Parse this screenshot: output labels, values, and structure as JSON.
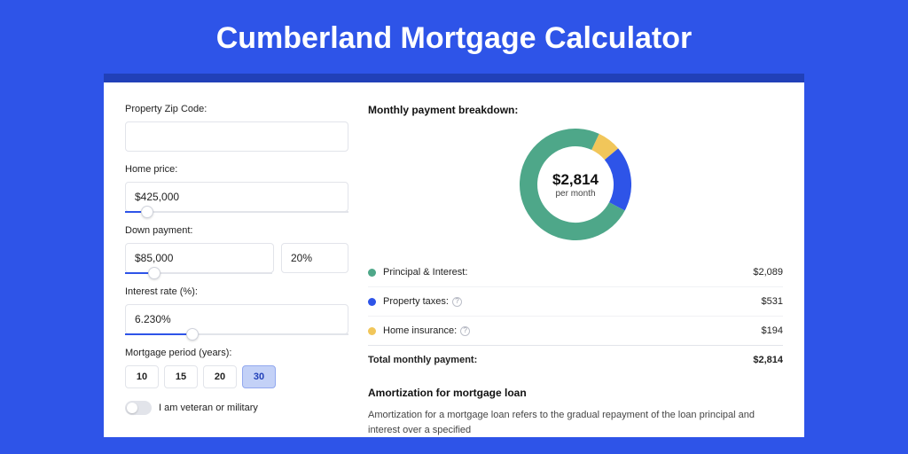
{
  "title": "Cumberland Mortgage Calculator",
  "colors": {
    "page_bg": "#2e54e8",
    "banner_bg": "#2140b8",
    "card_bg": "#ffffff",
    "primary": "#2e54e8",
    "border": "#e2e4ea"
  },
  "form": {
    "zip_label": "Property Zip Code:",
    "zip_value": "",
    "price_label": "Home price:",
    "price_value": "$425,000",
    "price_slider_pct": 10,
    "dp_label": "Down payment:",
    "dp_value": "$85,000",
    "dp_pct_value": "20%",
    "dp_slider_pct": 20,
    "rate_label": "Interest rate (%):",
    "rate_value": "6.230%",
    "rate_slider_pct": 30,
    "period_label": "Mortgage period (years):",
    "periods": [
      "10",
      "15",
      "20",
      "30"
    ],
    "period_active_index": 3,
    "veteran_label": "I am veteran or military"
  },
  "breakdown": {
    "heading": "Monthly payment breakdown:",
    "donut": {
      "amount": "$2,814",
      "sub": "per month",
      "slices": [
        {
          "label": "Principal & Interest",
          "value_pct": 74.2,
          "color": "#4ea789"
        },
        {
          "label": "Property taxes",
          "value_pct": 18.9,
          "color": "#2e54e8"
        },
        {
          "label": "Home insurance",
          "value_pct": 6.9,
          "color": "#f1c65a"
        }
      ],
      "ring_width": 20
    },
    "legend": [
      {
        "dot_color": "#4ea789",
        "label": "Principal & Interest:",
        "info": false,
        "value": "$2,089"
      },
      {
        "dot_color": "#2e54e8",
        "label": "Property taxes:",
        "info": true,
        "value": "$531"
      },
      {
        "dot_color": "#f1c65a",
        "label": "Home insurance:",
        "info": true,
        "value": "$194"
      }
    ],
    "total_label": "Total monthly payment:",
    "total_value": "$2,814"
  },
  "amortization": {
    "heading": "Amortization for mortgage loan",
    "text": "Amortization for a mortgage loan refers to the gradual repayment of the loan principal and interest over a specified"
  }
}
